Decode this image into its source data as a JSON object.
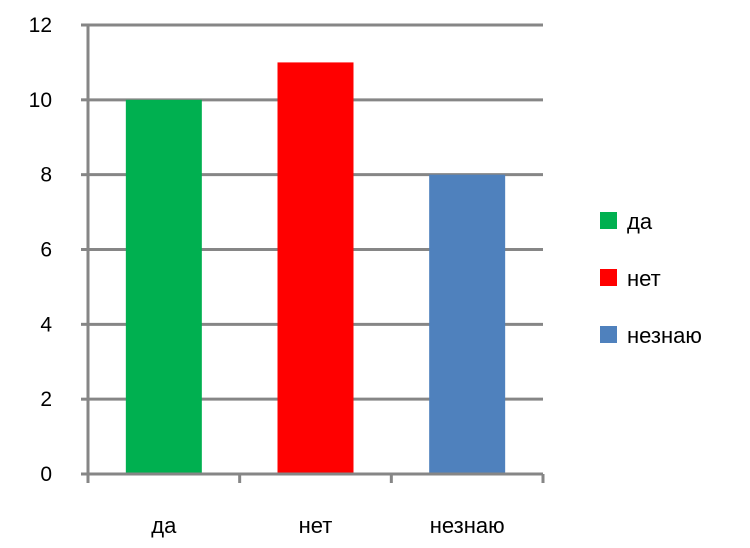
{
  "chart_data": {
    "type": "bar",
    "categories": [
      "да",
      "нет",
      "незнаю"
    ],
    "values": [
      10,
      11,
      8
    ],
    "colors": [
      "#00b050",
      "#ff0000",
      "#4f81bd"
    ],
    "ylim": [
      0,
      12
    ],
    "yticks": [
      "0",
      "2",
      "4",
      "6",
      "8",
      "10",
      "12"
    ],
    "grid": true,
    "gridline_color": "#868686",
    "legend_position": "right",
    "legend": [
      {
        "label": "да",
        "color": "#00b050"
      },
      {
        "label": "нет",
        "color": "#ff0000"
      },
      {
        "label": "незнаю",
        "color": "#4f81bd"
      }
    ]
  }
}
